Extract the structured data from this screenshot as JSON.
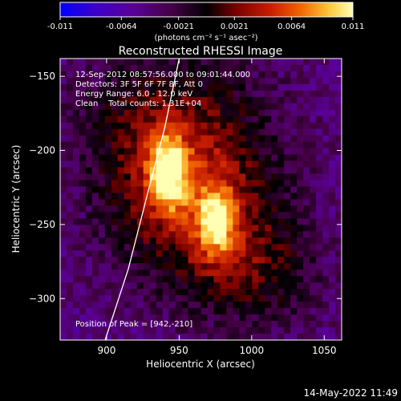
{
  "chart_data": {
    "type": "heatmap",
    "title": "Reconstructed RHESSI Image",
    "xlabel": "Heliocentric X (arcsec)",
    "ylabel": "Heliocentric Y (arcsec)",
    "xlim": [
      868,
      1062
    ],
    "ylim": [
      -328,
      -138
    ],
    "x_ticks": [
      "900",
      "950",
      "1000",
      "1050"
    ],
    "x_tick_values": [
      900,
      950,
      1000,
      1050
    ],
    "y_ticks": [
      "-150",
      "-200",
      "-250",
      "-300"
    ],
    "y_tick_values": [
      -150,
      -200,
      -250,
      -300
    ],
    "colorbar": {
      "ticks": [
        "-0.011",
        "-0.0064",
        "-0.0021",
        "0.0021",
        "0.0064",
        "0.011"
      ],
      "tick_values": [
        -0.011,
        -0.0064,
        -0.0021,
        0.0021,
        0.0064,
        0.011
      ],
      "range": [
        -0.011,
        0.011
      ],
      "units_label": "(photons cm⁻² s⁻¹ asec⁻²)",
      "colormap_stops": [
        "#0000ff",
        "#3c00c8",
        "#5a0096",
        "#460046",
        "#000000",
        "#780000",
        "#c81e00",
        "#f06400",
        "#ffc83c",
        "#ffffb4"
      ]
    },
    "annotations": [
      "12-Sep-2012 08:57:56.000 to 09:01:44.000",
      "Detectors: 3F 5F 6F 7F 8F, Att 0",
      "Energy Range: 6.0 - 12.0 keV",
      "Clean    Total counts: 1.31E+04"
    ],
    "peak_label": "Position of Peak = [942,-210]",
    "peak": [
      942,
      -210
    ],
    "sources": [
      {
        "x": 942,
        "y": -215,
        "peak_value": 0.011
      },
      {
        "x": 976,
        "y": -248,
        "peak_value": 0.0095
      }
    ],
    "limb_curve": [
      [
        899,
        -328
      ],
      [
        915,
        -280
      ],
      [
        928,
        -230
      ],
      [
        940,
        -185
      ],
      [
        950,
        -138
      ]
    ]
  },
  "footer_timestamp": "14-May-2022 11:49"
}
